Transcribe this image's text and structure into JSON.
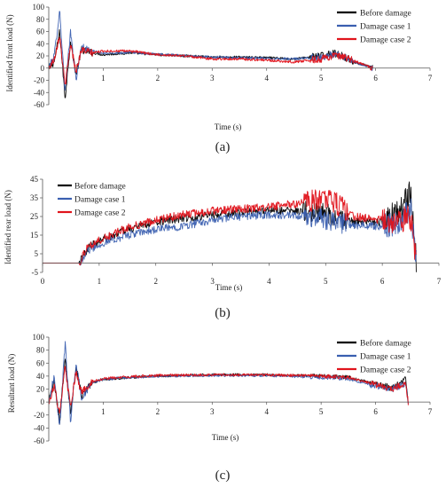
{
  "figure": {
    "panels": [
      {
        "label": "(a)",
        "ylabel": "Identified front load (N)",
        "xlabel": "Time (s)",
        "legend": [
          "Before damage",
          "Damage case 1",
          "Damage case 2"
        ]
      },
      {
        "label": "(b)",
        "ylabel": "Identified rear load (N)",
        "xlabel": "Time (s)",
        "legend": [
          "Before damage",
          "Damage case 1",
          "Damage case 2"
        ]
      },
      {
        "label": "(c)",
        "ylabel": "Resultant load (N)",
        "xlabel": "Time (s)",
        "legend": [
          "Before damage",
          "Damage case 1",
          "Damage case 2"
        ]
      }
    ]
  },
  "chart_data": [
    {
      "type": "line",
      "title": "",
      "xlabel": "Time (s)",
      "ylabel": "Identified front load (N)",
      "xlim": [
        0,
        7
      ],
      "ylim": [
        -60,
        100
      ],
      "xticks": [
        1,
        2,
        3,
        4,
        5,
        6,
        7
      ],
      "yticks": [
        -60,
        -40,
        -20,
        0,
        20,
        40,
        60,
        80,
        100
      ],
      "legend_position": "top-right",
      "series": [
        {
          "name": "Before damage",
          "color": "#000000",
          "points": [
            [
              0.0,
              0
            ],
            [
              0.1,
              10
            ],
            [
              0.2,
              60
            ],
            [
              0.3,
              -50
            ],
            [
              0.4,
              45
            ],
            [
              0.5,
              -10
            ],
            [
              0.6,
              30
            ],
            [
              0.8,
              25
            ],
            [
              1.0,
              22
            ],
            [
              1.5,
              25
            ],
            [
              2.0,
              22
            ],
            [
              2.5,
              20
            ],
            [
              3.0,
              18
            ],
            [
              3.5,
              18
            ],
            [
              4.0,
              17
            ],
            [
              4.5,
              15
            ],
            [
              5.0,
              20
            ],
            [
              5.2,
              25
            ],
            [
              5.4,
              20
            ],
            [
              5.6,
              10
            ],
            [
              5.8,
              5
            ],
            [
              5.95,
              0
            ]
          ]
        },
        {
          "name": "Damage case 1",
          "color": "#3a5fb0",
          "points": [
            [
              0.0,
              0
            ],
            [
              0.1,
              20
            ],
            [
              0.2,
              95
            ],
            [
              0.3,
              -40
            ],
            [
              0.4,
              60
            ],
            [
              0.5,
              -20
            ],
            [
              0.6,
              35
            ],
            [
              0.8,
              28
            ],
            [
              1.0,
              24
            ],
            [
              1.5,
              26
            ],
            [
              2.0,
              23
            ],
            [
              2.5,
              20
            ],
            [
              3.0,
              18
            ],
            [
              3.5,
              17
            ],
            [
              4.0,
              16
            ],
            [
              4.5,
              15
            ],
            [
              5.0,
              18
            ],
            [
              5.2,
              22
            ],
            [
              5.4,
              20
            ],
            [
              5.6,
              10
            ],
            [
              5.8,
              4
            ],
            [
              5.95,
              0
            ]
          ]
        },
        {
          "name": "Damage case 2",
          "color": "#e0141c",
          "points": [
            [
              0.0,
              0
            ],
            [
              0.1,
              15
            ],
            [
              0.2,
              55
            ],
            [
              0.3,
              -30
            ],
            [
              0.4,
              40
            ],
            [
              0.5,
              -5
            ],
            [
              0.6,
              30
            ],
            [
              0.8,
              25
            ],
            [
              1.0,
              28
            ],
            [
              1.5,
              28
            ],
            [
              2.0,
              22
            ],
            [
              2.5,
              20
            ],
            [
              3.0,
              15
            ],
            [
              3.5,
              15
            ],
            [
              4.0,
              13
            ],
            [
              4.5,
              10
            ],
            [
              5.0,
              15
            ],
            [
              5.2,
              20
            ],
            [
              5.4,
              18
            ],
            [
              5.6,
              12
            ],
            [
              5.8,
              5
            ],
            [
              5.95,
              0
            ]
          ]
        }
      ]
    },
    {
      "type": "line",
      "title": "",
      "xlabel": "Time (s)",
      "ylabel": "Identified rear load (N)",
      "xlim": [
        0,
        7
      ],
      "ylim": [
        -5,
        45
      ],
      "xticks": [
        0,
        1,
        2,
        3,
        4,
        5,
        6,
        7
      ],
      "yticks": [
        -5,
        5,
        15,
        25,
        35,
        45
      ],
      "legend_position": "top-left",
      "series": [
        {
          "name": "Before damage",
          "color": "#000000",
          "points": [
            [
              0.0,
              0
            ],
            [
              0.5,
              0
            ],
            [
              0.65,
              0
            ],
            [
              0.8,
              8
            ],
            [
              1.0,
              12
            ],
            [
              1.5,
              18
            ],
            [
              2.0,
              22
            ],
            [
              2.5,
              24
            ],
            [
              3.0,
              26
            ],
            [
              3.5,
              27
            ],
            [
              4.0,
              28
            ],
            [
              4.5,
              28
            ],
            [
              5.0,
              26
            ],
            [
              5.5,
              22
            ],
            [
              6.0,
              22
            ],
            [
              6.3,
              28
            ],
            [
              6.5,
              38
            ],
            [
              6.6,
              0
            ]
          ]
        },
        {
          "name": "Damage case 1",
          "color": "#3a5fb0",
          "points": [
            [
              0.0,
              0
            ],
            [
              0.5,
              0
            ],
            [
              0.65,
              0
            ],
            [
              0.8,
              7
            ],
            [
              1.0,
              10
            ],
            [
              1.5,
              15
            ],
            [
              2.0,
              18
            ],
            [
              2.5,
              20
            ],
            [
              3.0,
              23
            ],
            [
              3.5,
              25
            ],
            [
              4.0,
              26
            ],
            [
              4.5,
              25
            ],
            [
              5.0,
              24
            ],
            [
              5.5,
              20
            ],
            [
              6.0,
              20
            ],
            [
              6.3,
              22
            ],
            [
              6.5,
              30
            ],
            [
              6.6,
              0
            ]
          ]
        },
        {
          "name": "Damage case 2",
          "color": "#e0141c",
          "points": [
            [
              0.0,
              0
            ],
            [
              0.5,
              0
            ],
            [
              0.65,
              0
            ],
            [
              0.8,
              9
            ],
            [
              1.0,
              12
            ],
            [
              1.5,
              19
            ],
            [
              2.0,
              23
            ],
            [
              2.5,
              26
            ],
            [
              3.0,
              28
            ],
            [
              3.5,
              29
            ],
            [
              4.0,
              30
            ],
            [
              4.5,
              32
            ],
            [
              5.0,
              35
            ],
            [
              5.3,
              30
            ],
            [
              5.5,
              25
            ],
            [
              6.0,
              23
            ],
            [
              6.3,
              22
            ],
            [
              6.5,
              25
            ],
            [
              6.6,
              0
            ]
          ]
        }
      ]
    },
    {
      "type": "line",
      "title": "",
      "xlabel": "Time (s)",
      "ylabel": "Resultant load (N)",
      "xlim": [
        0,
        7
      ],
      "ylim": [
        -60,
        100
      ],
      "xticks": [
        1,
        2,
        3,
        4,
        5,
        6,
        7
      ],
      "yticks": [
        -60,
        -40,
        -20,
        0,
        20,
        40,
        60,
        80,
        100
      ],
      "legend_position": "top-right",
      "series": [
        {
          "name": "Before damage",
          "color": "#000000",
          "points": [
            [
              0.0,
              0
            ],
            [
              0.1,
              30
            ],
            [
              0.2,
              -30
            ],
            [
              0.3,
              70
            ],
            [
              0.4,
              -20
            ],
            [
              0.5,
              55
            ],
            [
              0.6,
              10
            ],
            [
              0.8,
              30
            ],
            [
              1.0,
              35
            ],
            [
              1.5,
              38
            ],
            [
              2.0,
              40
            ],
            [
              3.0,
              42
            ],
            [
              4.0,
              42
            ],
            [
              5.0,
              40
            ],
            [
              5.5,
              38
            ],
            [
              6.0,
              28
            ],
            [
              6.3,
              22
            ],
            [
              6.55,
              35
            ],
            [
              6.6,
              0
            ]
          ]
        },
        {
          "name": "Damage case 1",
          "color": "#3a5fb0",
          "points": [
            [
              0.0,
              0
            ],
            [
              0.1,
              40
            ],
            [
              0.2,
              -40
            ],
            [
              0.3,
              90
            ],
            [
              0.4,
              -30
            ],
            [
              0.5,
              60
            ],
            [
              0.6,
              5
            ],
            [
              0.8,
              30
            ],
            [
              1.0,
              35
            ],
            [
              1.5,
              38
            ],
            [
              2.0,
              40
            ],
            [
              3.0,
              41
            ],
            [
              4.0,
              41
            ],
            [
              5.0,
              38
            ],
            [
              5.5,
              36
            ],
            [
              6.0,
              25
            ],
            [
              6.3,
              20
            ],
            [
              6.55,
              28
            ],
            [
              6.6,
              0
            ]
          ]
        },
        {
          "name": "Damage case 2",
          "color": "#e0141c",
          "points": [
            [
              0.0,
              0
            ],
            [
              0.1,
              25
            ],
            [
              0.2,
              -20
            ],
            [
              0.3,
              55
            ],
            [
              0.4,
              -10
            ],
            [
              0.5,
              45
            ],
            [
              0.6,
              15
            ],
            [
              0.8,
              32
            ],
            [
              1.0,
              36
            ],
            [
              1.5,
              39
            ],
            [
              2.0,
              41
            ],
            [
              3.0,
              42
            ],
            [
              4.0,
              42
            ],
            [
              5.0,
              40
            ],
            [
              5.5,
              38
            ],
            [
              6.0,
              27
            ],
            [
              6.3,
              20
            ],
            [
              6.55,
              30
            ],
            [
              6.6,
              0
            ]
          ]
        }
      ]
    }
  ]
}
